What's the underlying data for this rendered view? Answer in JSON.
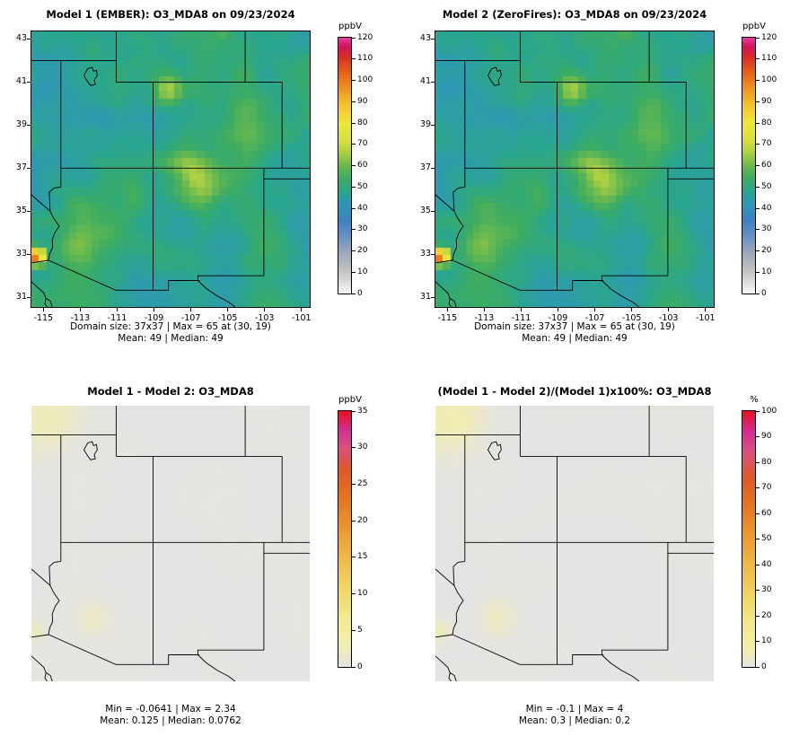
{
  "chart_data": [
    {
      "type": "heatmap",
      "title": "Model 1 (EMBER): O3_MDA8 on 09/23/2024",
      "units": "ppbV",
      "grid_nx": 37,
      "grid_ny": 37,
      "xlim": [
        -115.65,
        -100.55
      ],
      "ylim": [
        30.55,
        43.35
      ],
      "x_ticks": [
        -115,
        -113,
        -111,
        -109,
        -107,
        -105,
        -103,
        -101
      ],
      "y_ticks": [
        31,
        33,
        35,
        37,
        39,
        41,
        43
      ],
      "show_axis_labels": true,
      "stats": [
        "Domain size: 37x37 | Max = 65 at (30, 19)",
        "Mean: 49 | Median: 49"
      ],
      "colorbar": {
        "title": "ppbV",
        "min": 0,
        "max": 120,
        "ticks": [
          0,
          10,
          20,
          30,
          40,
          50,
          60,
          70,
          80,
          90,
          100,
          110,
          120
        ],
        "stops": [
          [
            0,
            "#f7f7f7"
          ],
          [
            10,
            "#c4c4c4"
          ],
          [
            18,
            "#a2abb8"
          ],
          [
            26,
            "#6e93c6"
          ],
          [
            34,
            "#3f80c2"
          ],
          [
            42,
            "#2f98b4"
          ],
          [
            48,
            "#2aa68e"
          ],
          [
            54,
            "#3dac62"
          ],
          [
            60,
            "#6cba4e"
          ],
          [
            66,
            "#abcf45"
          ],
          [
            72,
            "#d8e03e"
          ],
          [
            80,
            "#f0e73a"
          ],
          [
            88,
            "#f3c531"
          ],
          [
            96,
            "#ef9526"
          ],
          [
            104,
            "#e6611c"
          ],
          [
            111,
            "#da2d24"
          ],
          [
            116,
            "#d0145c"
          ],
          [
            120,
            "#e83a9e"
          ]
        ]
      },
      "field": {
        "base": 49,
        "noise_amp": 5.5,
        "seed": 11,
        "blobs": [
          [
            -108.2,
            40.65,
            17,
            0.55
          ],
          [
            -106.6,
            36.3,
            12,
            0.9
          ],
          [
            -107.4,
            37.1,
            8,
            0.7
          ],
          [
            -104.0,
            39.4,
            8,
            1.0
          ],
          [
            -103.2,
            38.3,
            5,
            0.8
          ],
          [
            -112.3,
            34.2,
            9,
            0.9
          ],
          [
            -113.3,
            33.1,
            7,
            0.7
          ],
          [
            -110.6,
            35.3,
            5,
            0.9
          ],
          [
            -115.35,
            32.9,
            62,
            0.28
          ],
          [
            -114.9,
            40.8,
            -7,
            1.3
          ],
          [
            -101.6,
            36.6,
            -7,
            1.2
          ],
          [
            -104.8,
            31.5,
            -5,
            1.0
          ],
          [
            -109.5,
            31.2,
            -4,
            0.9
          ],
          [
            -113.0,
            37.1,
            -5,
            0.8
          ],
          [
            -105.5,
            34.0,
            -4,
            1.0
          ]
        ]
      }
    },
    {
      "type": "heatmap",
      "title": "Model 2 (ZeroFires): O3_MDA8 on 09/23/2024",
      "units": "ppbV",
      "grid_nx": 37,
      "grid_ny": 37,
      "xlim": [
        -115.65,
        -100.55
      ],
      "ylim": [
        30.55,
        43.35
      ],
      "x_ticks": [
        -115,
        -113,
        -111,
        -109,
        -107,
        -105,
        -103,
        -101
      ],
      "y_ticks": [
        31,
        33,
        35,
        37,
        39,
        41,
        43
      ],
      "show_axis_labels": true,
      "stats": [
        "Domain size: 37x37 | Max = 65 at (30, 19)",
        "Mean: 49 | Median: 49"
      ],
      "colorbar": {
        "title": "ppbV",
        "min": 0,
        "max": 120,
        "ticks": [
          0,
          10,
          20,
          30,
          40,
          50,
          60,
          70,
          80,
          90,
          100,
          110,
          120
        ],
        "stops": [
          [
            0,
            "#f7f7f7"
          ],
          [
            10,
            "#c4c4c4"
          ],
          [
            18,
            "#a2abb8"
          ],
          [
            26,
            "#6e93c6"
          ],
          [
            34,
            "#3f80c2"
          ],
          [
            42,
            "#2f98b4"
          ],
          [
            48,
            "#2aa68e"
          ],
          [
            54,
            "#3dac62"
          ],
          [
            60,
            "#6cba4e"
          ],
          [
            66,
            "#abcf45"
          ],
          [
            72,
            "#d8e03e"
          ],
          [
            80,
            "#f0e73a"
          ],
          [
            88,
            "#f3c531"
          ],
          [
            96,
            "#ef9526"
          ],
          [
            104,
            "#e6611c"
          ],
          [
            111,
            "#da2d24"
          ],
          [
            116,
            "#d0145c"
          ],
          [
            120,
            "#e83a9e"
          ]
        ]
      },
      "field": {
        "base": 49,
        "noise_amp": 5.5,
        "seed": 11,
        "blobs": [
          [
            -108.2,
            40.65,
            17,
            0.55
          ],
          [
            -106.6,
            36.3,
            12,
            0.9
          ],
          [
            -107.4,
            37.1,
            8,
            0.7
          ],
          [
            -104.0,
            39.4,
            8,
            1.0
          ],
          [
            -103.2,
            38.3,
            5,
            0.8
          ],
          [
            -112.3,
            34.2,
            9,
            0.9
          ],
          [
            -113.3,
            33.1,
            7,
            0.7
          ],
          [
            -110.6,
            35.3,
            5,
            0.9
          ],
          [
            -115.35,
            32.9,
            62,
            0.28
          ],
          [
            -114.9,
            40.8,
            -7,
            1.3
          ],
          [
            -101.6,
            36.6,
            -7,
            1.2
          ],
          [
            -104.8,
            31.5,
            -5,
            1.0
          ],
          [
            -109.5,
            31.2,
            -4,
            0.9
          ],
          [
            -113.0,
            37.1,
            -5,
            0.8
          ],
          [
            -105.5,
            34.0,
            -4,
            1.0
          ]
        ]
      }
    },
    {
      "type": "heatmap",
      "title": "Model 1 - Model 2: O3_MDA8",
      "units": "ppbV",
      "grid_nx": 37,
      "grid_ny": 37,
      "xlim": [
        -115.65,
        -100.55
      ],
      "ylim": [
        30.55,
        43.35
      ],
      "x_ticks": [],
      "y_ticks": [],
      "show_axis_labels": false,
      "stats": [
        "Min = -0.0641 | Max = 2.34",
        "Mean: 0.125 | Median: 0.0762"
      ],
      "colorbar": {
        "title": "ppbV",
        "min": 0,
        "max": 35,
        "ticks": [
          0,
          5,
          10,
          15,
          20,
          25,
          30,
          35
        ],
        "stops": [
          [
            0,
            "#e4e4e4"
          ],
          [
            1,
            "#e9e7d2"
          ],
          [
            2.5,
            "#efecba"
          ],
          [
            4,
            "#f3efa2"
          ],
          [
            7,
            "#f2e88a"
          ],
          [
            11,
            "#f0d465"
          ],
          [
            15,
            "#eeb84a"
          ],
          [
            19,
            "#ea9734"
          ],
          [
            23,
            "#e47722"
          ],
          [
            27,
            "#de5a28"
          ],
          [
            30,
            "#d8527e"
          ],
          [
            32.5,
            "#d42d96"
          ],
          [
            35,
            "#e81123"
          ]
        ]
      },
      "field": {
        "base": 0.12,
        "noise_amp": 0.1,
        "seed": 21,
        "blobs": [
          [
            -115.2,
            42.6,
            2.0,
            1.0
          ],
          [
            -113.9,
            42.9,
            1.2,
            0.8
          ],
          [
            -112.3,
            33.5,
            1.6,
            0.6
          ],
          [
            -115.35,
            32.9,
            2.2,
            0.3
          ]
        ]
      }
    },
    {
      "type": "heatmap",
      "title": "(Model 1 - Model 2)/(Model 1)x100%: O3_MDA8",
      "units": "%",
      "grid_nx": 37,
      "grid_ny": 37,
      "xlim": [
        -115.65,
        -100.55
      ],
      "ylim": [
        30.55,
        43.35
      ],
      "x_ticks": [],
      "y_ticks": [],
      "show_axis_labels": false,
      "stats": [
        "Min = -0.1 | Max = 4",
        "Mean: 0.3 | Median: 0.2"
      ],
      "colorbar": {
        "title": "%",
        "min": 0,
        "max": 100,
        "ticks": [
          0,
          10,
          20,
          30,
          40,
          50,
          60,
          70,
          80,
          90,
          100
        ],
        "stops": [
          [
            0,
            "#e4e4e4"
          ],
          [
            2,
            "#e9e7d2"
          ],
          [
            5,
            "#efecba"
          ],
          [
            9,
            "#f3efa2"
          ],
          [
            18,
            "#f2e88a"
          ],
          [
            28,
            "#f0d465"
          ],
          [
            40,
            "#eeb84a"
          ],
          [
            52,
            "#ea9734"
          ],
          [
            63,
            "#e47722"
          ],
          [
            74,
            "#de5a28"
          ],
          [
            84,
            "#d8527e"
          ],
          [
            92,
            "#d42d96"
          ],
          [
            100,
            "#e81123"
          ]
        ]
      },
      "field": {
        "base": 0.3,
        "noise_amp": 0.25,
        "seed": 22,
        "blobs": [
          [
            -115.2,
            42.6,
            5,
            1.0
          ],
          [
            -113.9,
            42.9,
            3,
            0.8
          ],
          [
            -112.3,
            33.5,
            4,
            0.6
          ],
          [
            -115.35,
            32.9,
            5,
            0.3
          ]
        ]
      }
    }
  ],
  "map_overlay": {
    "borders": [
      [
        [
          -114.05,
          37
        ],
        [
          -100.55,
          37
        ]
      ],
      [
        [
          -111.05,
          41
        ],
        [
          -102.05,
          41
        ]
      ],
      [
        [
          -115.65,
          42
        ],
        [
          -111.05,
          42
        ]
      ],
      [
        [
          -111.05,
          43.35
        ],
        [
          -111.05,
          41
        ]
      ],
      [
        [
          -104.05,
          43.35
        ],
        [
          -104.05,
          41
        ]
      ],
      [
        [
          -114.05,
          42
        ],
        [
          -114.05,
          36.12
        ]
      ],
      [
        [
          -109.05,
          41
        ],
        [
          -109.05,
          31.33
        ]
      ],
      [
        [
          -102.05,
          41
        ],
        [
          -102.05,
          37
        ]
      ],
      [
        [
          -103.04,
          37
        ],
        [
          -103.04,
          32.0
        ]
      ],
      [
        [
          -103.04,
          36.5
        ],
        [
          -100.55,
          36.5
        ]
      ],
      [
        [
          -103.04,
          32.0
        ],
        [
          -106.62,
          32.0
        ],
        [
          -106.62,
          31.78
        ]
      ],
      [
        [
          -106.62,
          31.78
        ],
        [
          -106.15,
          31.4
        ],
        [
          -105.55,
          31.05
        ],
        [
          -104.95,
          30.78
        ],
        [
          -104.6,
          30.55
        ]
      ],
      [
        [
          -115.65,
          35.76
        ],
        [
          -114.63,
          35.0
        ]
      ],
      [
        [
          -114.05,
          36.12
        ],
        [
          -114.42,
          36.08
        ],
        [
          -114.68,
          35.88
        ],
        [
          -114.66,
          35.45
        ],
        [
          -114.63,
          35.0
        ],
        [
          -114.45,
          34.68
        ],
        [
          -114.14,
          34.3
        ],
        [
          -114.36,
          34.03
        ],
        [
          -114.52,
          33.68
        ],
        [
          -114.5,
          33.32
        ],
        [
          -114.66,
          33.02
        ],
        [
          -114.72,
          32.72
        ]
      ],
      [
        [
          -114.72,
          32.72
        ],
        [
          -115.65,
          32.6
        ]
      ],
      [
        [
          -114.72,
          32.72
        ],
        [
          -111.07,
          31.33
        ],
        [
          -108.21,
          31.33
        ],
        [
          -108.21,
          31.78
        ],
        [
          -106.53,
          31.78
        ]
      ]
    ],
    "coastlines": [
      [
        [
          -115.65,
          31.72
        ],
        [
          -115.3,
          31.45
        ],
        [
          -114.98,
          31.2
        ],
        [
          -114.86,
          30.95
        ],
        [
          -114.92,
          30.7
        ],
        [
          -114.8,
          30.55
        ]
      ],
      [
        [
          -114.86,
          30.95
        ],
        [
          -114.62,
          30.82
        ],
        [
          -114.52,
          30.55
        ]
      ]
    ],
    "lakes": [
      [
        [
          -112.8,
          41.3
        ],
        [
          -112.6,
          41.62
        ],
        [
          -112.35,
          41.68
        ],
        [
          -112.28,
          41.5
        ],
        [
          -112.12,
          41.55
        ],
        [
          -112.08,
          41.3
        ],
        [
          -112.24,
          41.08
        ],
        [
          -112.18,
          40.88
        ],
        [
          -112.44,
          40.84
        ],
        [
          -112.6,
          41.02
        ],
        [
          -112.8,
          41.3
        ]
      ]
    ]
  }
}
